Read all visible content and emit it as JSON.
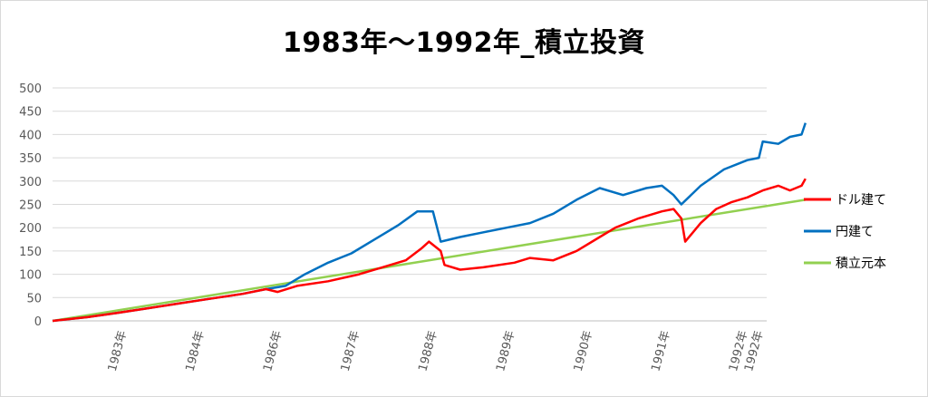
{
  "chart_data": {
    "type": "line",
    "title": "1983年～1992年_積立投資",
    "xlabel": "",
    "ylabel": "",
    "ylim": [
      0,
      500
    ],
    "yticks": [
      0,
      50,
      100,
      150,
      200,
      250,
      300,
      350,
      400,
      450,
      500
    ],
    "xlim": [
      1982.85,
      1992.05
    ],
    "xticks": [
      {
        "x": 1983.8,
        "label": "1983年"
      },
      {
        "x": 1984.8,
        "label": "1984年"
      },
      {
        "x": 1985.8,
        "label": "1986年"
      },
      {
        "x": 1986.8,
        "label": "1987年"
      },
      {
        "x": 1987.8,
        "label": "1988年"
      },
      {
        "x": 1988.8,
        "label": "1989年"
      },
      {
        "x": 1989.8,
        "label": "1990年"
      },
      {
        "x": 1990.8,
        "label": "1991年"
      },
      {
        "x": 1991.8,
        "label": "1992年"
      },
      {
        "x": 1992.0,
        "label": "1992年"
      }
    ],
    "grid": true,
    "legend_position": "right",
    "series": [
      {
        "name": "ドル建て",
        "color": "#ff0000",
        "points": [
          [
            1982.85,
            0
          ],
          [
            1983.3,
            8
          ],
          [
            1983.6,
            15
          ],
          [
            1984.0,
            25
          ],
          [
            1984.5,
            38
          ],
          [
            1984.9,
            48
          ],
          [
            1985.3,
            58
          ],
          [
            1985.6,
            68
          ],
          [
            1985.75,
            62
          ],
          [
            1986.0,
            75
          ],
          [
            1986.4,
            85
          ],
          [
            1986.8,
            100
          ],
          [
            1987.1,
            115
          ],
          [
            1987.4,
            130
          ],
          [
            1987.6,
            155
          ],
          [
            1987.7,
            170
          ],
          [
            1987.85,
            150
          ],
          [
            1987.9,
            120
          ],
          [
            1988.1,
            110
          ],
          [
            1988.4,
            115
          ],
          [
            1988.8,
            125
          ],
          [
            1989.0,
            135
          ],
          [
            1989.3,
            130
          ],
          [
            1989.6,
            150
          ],
          [
            1989.9,
            180
          ],
          [
            1990.1,
            200
          ],
          [
            1990.4,
            220
          ],
          [
            1990.7,
            235
          ],
          [
            1990.85,
            240
          ],
          [
            1990.95,
            220
          ],
          [
            1991.0,
            170
          ],
          [
            1991.2,
            210
          ],
          [
            1991.4,
            240
          ],
          [
            1991.6,
            255
          ],
          [
            1991.8,
            265
          ],
          [
            1992.0,
            280
          ],
          [
            1992.2,
            290
          ],
          [
            1992.35,
            280
          ],
          [
            1992.5,
            290
          ],
          [
            1992.55,
            305
          ]
        ]
      },
      {
        "name": "円建て",
        "color": "#0070c0",
        "points": [
          [
            1982.85,
            0
          ],
          [
            1983.3,
            8
          ],
          [
            1983.6,
            15
          ],
          [
            1984.0,
            25
          ],
          [
            1984.5,
            38
          ],
          [
            1984.9,
            48
          ],
          [
            1985.3,
            58
          ],
          [
            1985.6,
            68
          ],
          [
            1985.85,
            75
          ],
          [
            1986.1,
            100
          ],
          [
            1986.4,
            125
          ],
          [
            1986.7,
            145
          ],
          [
            1987.0,
            175
          ],
          [
            1987.3,
            205
          ],
          [
            1987.55,
            235
          ],
          [
            1987.75,
            235
          ],
          [
            1987.85,
            170
          ],
          [
            1988.1,
            180
          ],
          [
            1988.4,
            190
          ],
          [
            1988.7,
            200
          ],
          [
            1989.0,
            210
          ],
          [
            1989.3,
            230
          ],
          [
            1989.6,
            260
          ],
          [
            1989.9,
            285
          ],
          [
            1990.2,
            270
          ],
          [
            1990.5,
            285
          ],
          [
            1990.7,
            290
          ],
          [
            1990.85,
            270
          ],
          [
            1990.95,
            250
          ],
          [
            1991.2,
            290
          ],
          [
            1991.5,
            325
          ],
          [
            1991.8,
            345
          ],
          [
            1991.95,
            350
          ],
          [
            1992.0,
            385
          ],
          [
            1992.2,
            380
          ],
          [
            1992.35,
            395
          ],
          [
            1992.5,
            400
          ],
          [
            1992.55,
            425
          ]
        ]
      },
      {
        "name": "積立元本",
        "color": "#92d050",
        "points": [
          [
            1982.85,
            0
          ],
          [
            1992.55,
            260
          ]
        ]
      }
    ]
  }
}
